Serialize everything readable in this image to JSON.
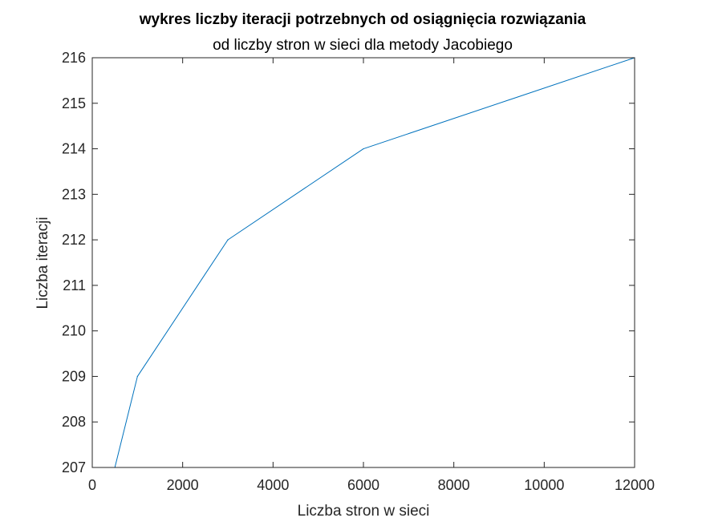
{
  "chart_data": {
    "type": "line",
    "title": "wykres liczby iteracji potrzebnych od osiągnięcia rozwiązania",
    "subtitle": "od liczby stron w sieci dla metody Jacobiego",
    "xlabel": "Liczba stron w sieci",
    "ylabel": "Liczba iteracji",
    "xlim": [
      0,
      12000
    ],
    "ylim": [
      207,
      216
    ],
    "xticks": [
      0,
      2000,
      4000,
      6000,
      8000,
      10000,
      12000
    ],
    "yticks": [
      207,
      208,
      209,
      210,
      211,
      212,
      213,
      214,
      215,
      216
    ],
    "grid": false,
    "series": [
      {
        "x": [
          500,
          1000,
          3000,
          6000,
          12000
        ],
        "y": [
          207,
          209,
          212,
          214,
          216
        ],
        "color": "#0072bd"
      }
    ]
  }
}
